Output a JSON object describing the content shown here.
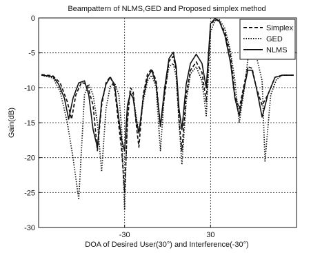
{
  "chart_data": {
    "type": "line",
    "title": "Beampattern of NLMS,GED and Proposed simplex method",
    "xlabel": "DOA of Desired User(30°) and Interference(-30°)",
    "ylabel": "Gain(dB)",
    "xlim": [
      -90,
      90
    ],
    "ylim": [
      -30,
      0
    ],
    "xticks": [
      -30,
      30
    ],
    "yticks": [
      0,
      -5,
      -10,
      -15,
      -20,
      -25,
      -30
    ],
    "grid": true,
    "legend_position": "top-right",
    "series": [
      {
        "name": "Simplex",
        "style": "dashed",
        "x": [
          -88,
          -80,
          -75,
          -70,
          -67,
          -64,
          -60,
          -56,
          -52,
          -49,
          -46,
          -43,
          -40,
          -37,
          -34,
          -32,
          -30,
          -28,
          -26,
          -24,
          -22,
          -20,
          -17,
          -14,
          -11,
          -8,
          -5,
          -2,
          1,
          4,
          6,
          8,
          10,
          13,
          16,
          20,
          24,
          27,
          30,
          33,
          36,
          40,
          44,
          47,
          50,
          53,
          56,
          59,
          62,
          66,
          70,
          75,
          80,
          88
        ],
        "y": [
          -8.1,
          -8.3,
          -9.3,
          -12,
          -14.5,
          -11,
          -9.2,
          -9.6,
          -12.5,
          -19,
          -12.5,
          -9.3,
          -8.4,
          -10,
          -15.5,
          -19,
          -25,
          -15,
          -10,
          -10.5,
          -15,
          -18.5,
          -11,
          -8,
          -7.3,
          -9,
          -15.5,
          -11,
          -6.2,
          -5.5,
          -7.5,
          -14.5,
          -19,
          -11,
          -7.5,
          -6.3,
          -7.8,
          -12,
          -1,
          -0.2,
          -0.5,
          -2,
          -5.5,
          -11,
          -13,
          -10,
          -7,
          -7.2,
          -10,
          -12.5,
          -11,
          -8.5,
          -8.2,
          -8.2
        ]
      },
      {
        "name": "GED",
        "style": "dotted",
        "x": [
          -88,
          -80,
          -75,
          -70,
          -66,
          -62,
          -58,
          -55,
          -52,
          -49,
          -46,
          -43,
          -40,
          -37,
          -34,
          -32,
          -30,
          -28,
          -26,
          -24,
          -22,
          -20,
          -17,
          -14,
          -11,
          -8,
          -5,
          -2,
          1,
          4,
          6,
          8,
          10,
          13,
          16,
          20,
          24,
          27,
          30,
          33,
          36,
          40,
          44,
          47,
          50,
          53,
          56,
          59,
          62,
          66,
          68,
          72,
          76,
          80,
          88
        ],
        "y": [
          -8.2,
          -8.6,
          -10.5,
          -15,
          -20,
          -26,
          -11,
          -9.5,
          -11,
          -15,
          -22,
          -13,
          -9.8,
          -9.3,
          -11,
          -16,
          -27.5,
          -13.5,
          -10.5,
          -11,
          -14,
          -16.5,
          -12,
          -9,
          -8.2,
          -10,
          -19,
          -10.5,
          -7,
          -6.5,
          -8.5,
          -15,
          -21,
          -12,
          -8,
          -7,
          -9,
          -14,
          -2,
          -0.4,
          -0.2,
          -1.5,
          -4.8,
          -9,
          -15,
          -11,
          -6,
          -4.5,
          -5.5,
          -9,
          -20.5,
          -11,
          -8.8,
          -8.2,
          -8.2
        ]
      },
      {
        "name": "NLMS",
        "style": "solid",
        "x": [
          -88,
          -80,
          -76,
          -72,
          -69,
          -66,
          -62,
          -58,
          -55,
          -52,
          -49,
          -46,
          -43,
          -40,
          -37,
          -34,
          -32,
          -30,
          -28,
          -26,
          -24,
          -22,
          -20,
          -17,
          -14,
          -11,
          -8,
          -5,
          -2,
          1,
          4,
          6,
          8,
          10,
          13,
          16,
          20,
          24,
          27,
          30,
          33,
          36,
          40,
          44,
          47,
          50,
          53,
          56,
          59,
          62,
          66,
          70,
          75,
          80,
          88
        ],
        "y": [
          -8.2,
          -8.4,
          -9.5,
          -11.5,
          -14.5,
          -11.5,
          -9.3,
          -9,
          -11,
          -16,
          -18.5,
          -12,
          -9.5,
          -8.5,
          -9.5,
          -14.5,
          -17.5,
          -19,
          -12.5,
          -10.8,
          -11.5,
          -14.5,
          -16.5,
          -11.5,
          -8.5,
          -7.5,
          -9.5,
          -15.5,
          -10,
          -5.8,
          -4.9,
          -7,
          -13,
          -16,
          -9.5,
          -6.5,
          -5.2,
          -6.5,
          -10,
          -0.8,
          -0.1,
          -0.4,
          -2.5,
          -6.5,
          -11.5,
          -14,
          -10.5,
          -7.5,
          -7.5,
          -10,
          -14.2,
          -11,
          -8.5,
          -8.2,
          -8.2
        ]
      }
    ]
  }
}
